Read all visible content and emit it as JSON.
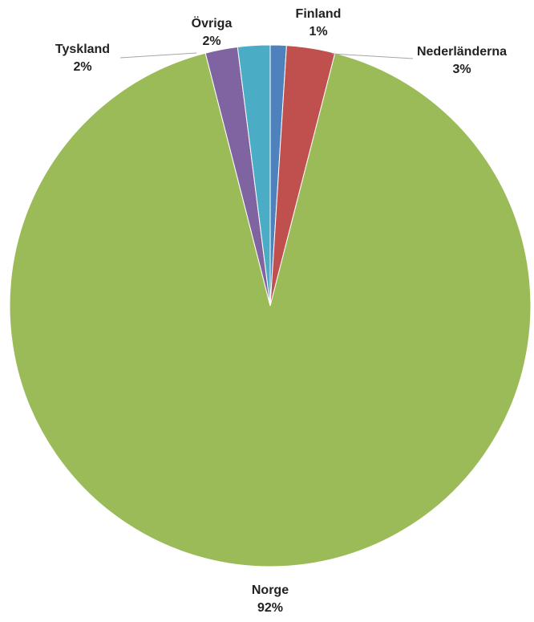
{
  "chart_data": {
    "type": "pie",
    "title": "",
    "start_angle_deg": 0,
    "direction": "clockwise",
    "slices": [
      {
        "name": "Finland",
        "value": 1,
        "label": "1%",
        "color": "#4F81BD"
      },
      {
        "name": "Nederländerna",
        "value": 3,
        "label": "3%",
        "color": "#C0504D"
      },
      {
        "name": "Norge",
        "value": 92,
        "label": "92%",
        "color": "#9BBB59"
      },
      {
        "name": "Tyskland",
        "value": 2,
        "label": "2%",
        "color": "#8064A2"
      },
      {
        "name": "Övriga",
        "value": 2,
        "label": "2%",
        "color": "#4BACC6"
      }
    ]
  }
}
